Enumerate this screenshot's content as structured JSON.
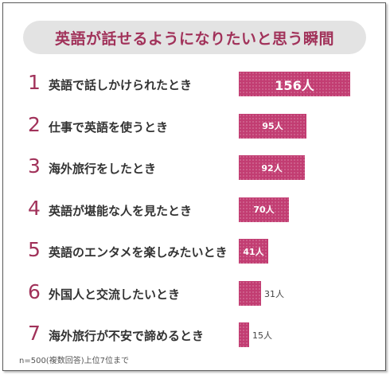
{
  "title": "英語が話せるようになりたいと思う瞬間",
  "note": "n=500(複数回答)上位7位まで",
  "colors": {
    "accent": "#a1325a",
    "bar": "#c23d72",
    "pill": "#e3e3e3"
  },
  "chart_data": {
    "type": "bar",
    "orientation": "horizontal",
    "title": "英語が話せるようになりたいと思う瞬間",
    "unit": "人",
    "ranks": [
      "1",
      "2",
      "3",
      "4",
      "5",
      "6",
      "7"
    ],
    "categories": [
      "英語で話しかけられたとき",
      "仕事で英語を使うとき",
      "海外旅行をしたとき",
      "英語が堪能な人を見たとき",
      "英語のエンタメを楽しみたいとき",
      "外国人と交流したいとき",
      "海外旅行が不安で諦めるとき"
    ],
    "values": [
      156,
      95,
      92,
      70,
      41,
      31,
      15
    ],
    "value_labels": [
      "156人",
      "95人",
      "92人",
      "70人",
      "41人",
      "31人",
      "15人"
    ],
    "xlim": [
      0,
      156
    ]
  }
}
